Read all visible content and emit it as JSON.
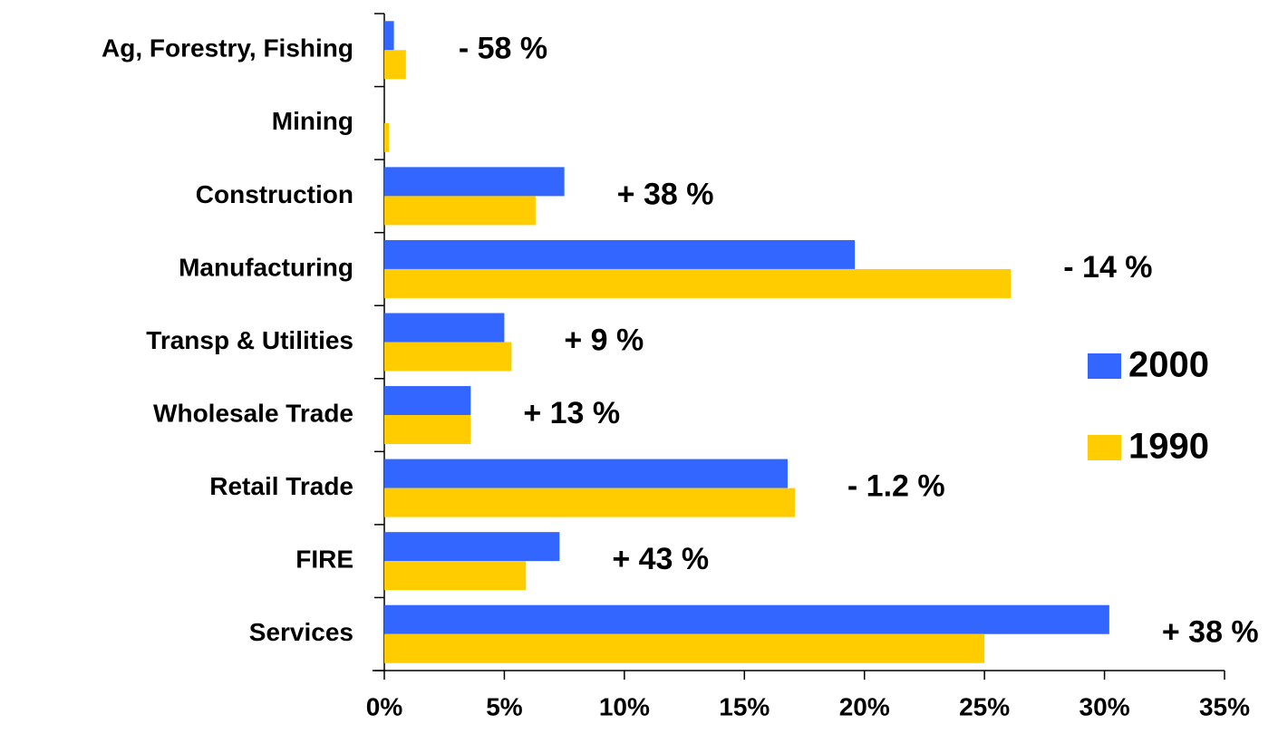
{
  "chart_data": {
    "type": "bar",
    "orientation": "horizontal",
    "categories": [
      "Ag, Forestry, Fishing",
      "Mining",
      "Construction",
      "Manufacturing",
      "Transp & Utilities",
      "Wholesale Trade",
      "Retail Trade",
      "FIRE",
      "Services"
    ],
    "series": [
      {
        "name": "2000",
        "color": "#3366ff",
        "values": [
          0.4,
          0,
          7.5,
          19.6,
          5.0,
          3.6,
          16.8,
          7.3,
          30.2
        ]
      },
      {
        "name": "1990",
        "color": "#ffcc00",
        "values": [
          0.9,
          0.2,
          6.3,
          26.1,
          5.3,
          3.6,
          17.1,
          5.9,
          25.0
        ]
      }
    ],
    "annotations": [
      "- 58 %",
      null,
      "+ 38 %",
      "- 14 %",
      "+ 9 %",
      "+ 13 %",
      "- 1.2 %",
      "+ 43 %",
      "+ 38 %"
    ],
    "xlim": [
      0,
      35
    ],
    "xticks": [
      {
        "value": 0,
        "label": "0%"
      },
      {
        "value": 5,
        "label": "5%"
      },
      {
        "value": 10,
        "label": "10%"
      },
      {
        "value": 15,
        "label": "15%"
      },
      {
        "value": 20,
        "label": "20%"
      },
      {
        "value": 25,
        "label": "25%"
      },
      {
        "value": 30,
        "label": "30%"
      },
      {
        "value": 35,
        "label": "35%"
      }
    ],
    "grid": false,
    "legend": "right"
  }
}
